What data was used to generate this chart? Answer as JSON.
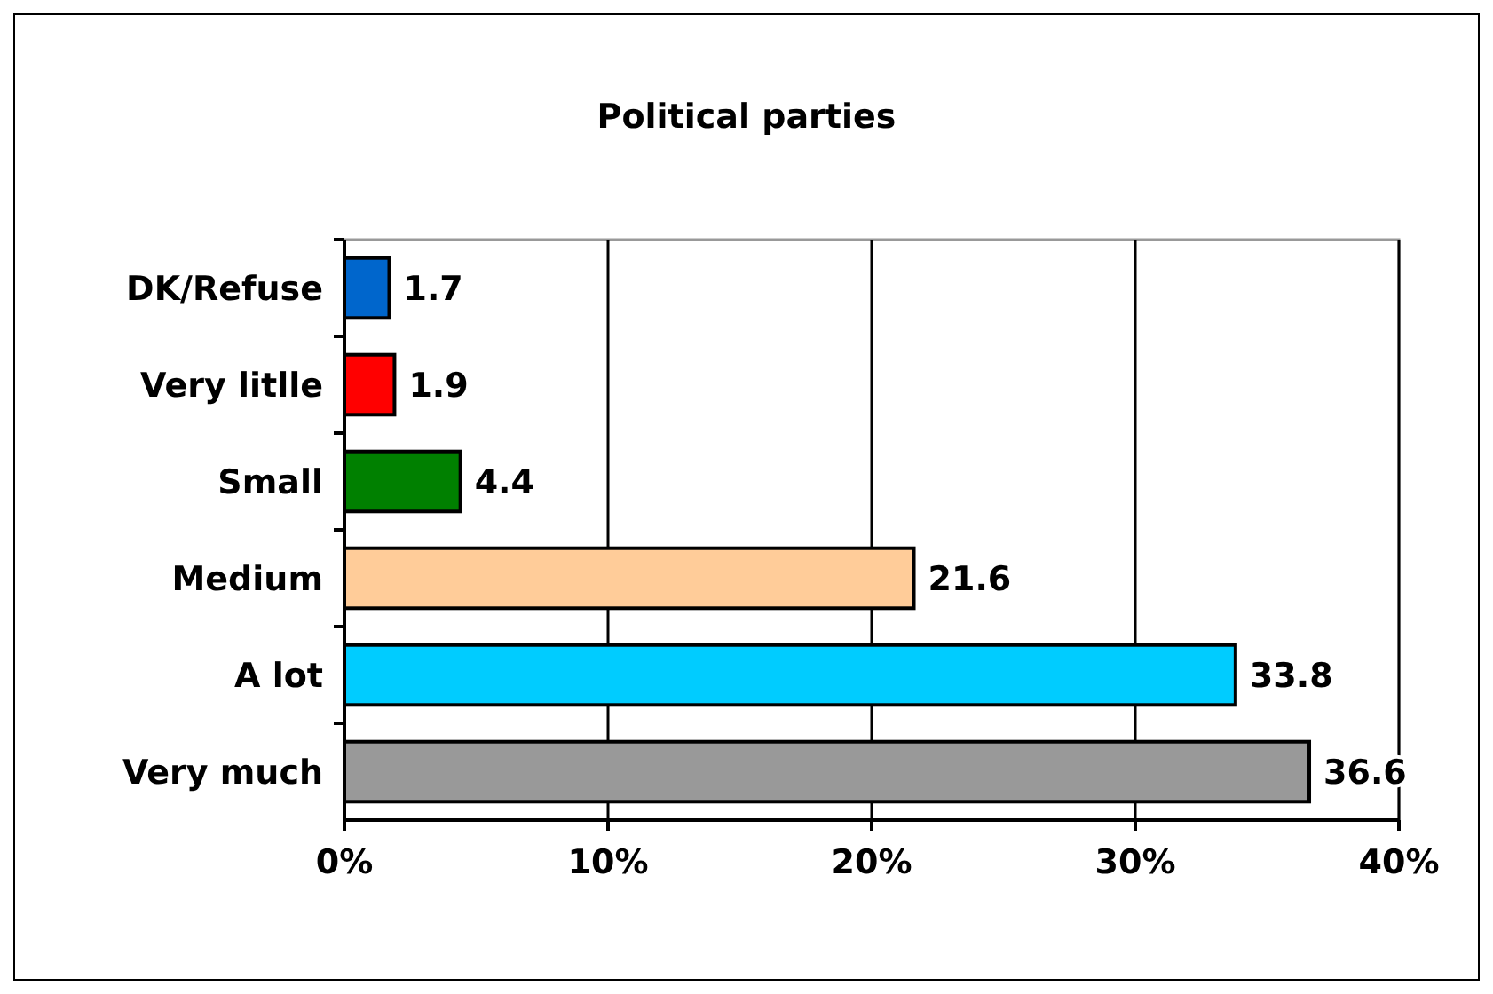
{
  "chart_data": {
    "type": "bar",
    "orientation": "horizontal",
    "title": "Political parties",
    "categories": [
      "DK/Refuse",
      "Very litlle",
      "Small",
      "Medium",
      "A lot",
      "Very much"
    ],
    "values": [
      1.7,
      1.9,
      4.4,
      21.6,
      33.8,
      36.6
    ],
    "colors": [
      "#0066cc",
      "#ff0000",
      "#008000",
      "#ffcc99",
      "#00ccff",
      "#999999"
    ],
    "xlim": [
      0,
      40
    ],
    "xticks": [
      {
        "value": 0,
        "label": "0%"
      },
      {
        "value": 10,
        "label": "10%"
      },
      {
        "value": 20,
        "label": "20%"
      },
      {
        "value": 30,
        "label": "30%"
      },
      {
        "value": 40,
        "label": "40%"
      }
    ],
    "grid": "x",
    "data_labels": true
  }
}
